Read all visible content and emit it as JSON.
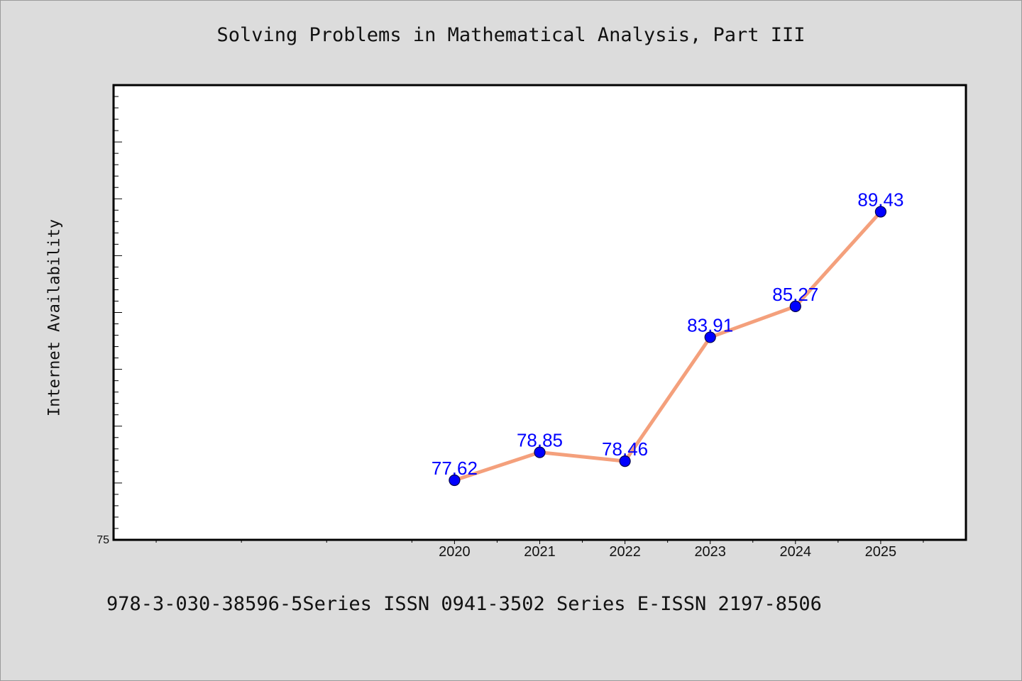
{
  "chart_data": {
    "type": "line",
    "title": "Solving Problems in Mathematical Analysis, Part III",
    "xlabel": "",
    "ylabel": "Internet Availability",
    "x": [
      "2020",
      "2021",
      "2022",
      "2023",
      "2024",
      "2025"
    ],
    "series": [
      {
        "values": [
          77.62,
          78.85,
          78.46,
          83.91,
          85.27,
          89.43
        ]
      }
    ],
    "data_labels": [
      "77.62",
      "78.85",
      "78.46",
      "83.91",
      "85.27",
      "89.43"
    ],
    "y_tick_labels": [
      "75"
    ],
    "ylim": [
      75,
      95
    ],
    "x_data_range": [
      2016,
      2026
    ],
    "line_color": "#f4a07c",
    "marker_color": "#0000ff",
    "label_color": "#0000ff",
    "grid": false
  },
  "footer": {
    "text": "978-3-030-38596-5Series ISSN 0941-3502 Series E-ISSN 2197-8506"
  }
}
